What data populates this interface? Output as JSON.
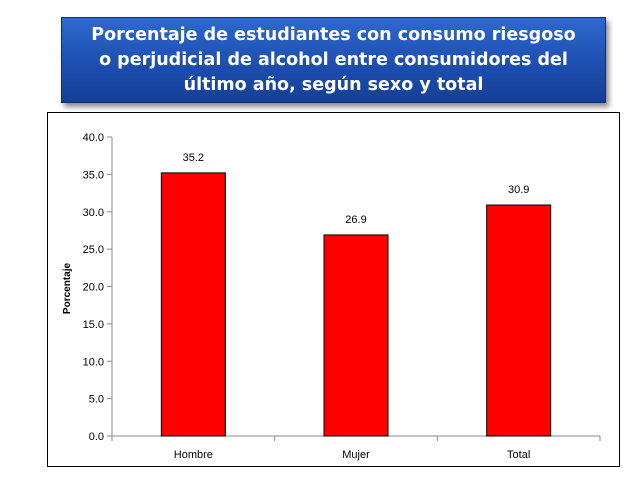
{
  "title_lines": [
    "Porcentaje de estudiantes con consumo riesgoso",
    "o perjudicial de alcohol entre consumidores del",
    "último año, según sexo y total"
  ],
  "chart_data": {
    "type": "bar",
    "title": "Porcentaje de estudiantes con consumo riesgoso o perjudicial de alcohol entre consumidores del último año, según sexo y total",
    "categories": [
      "Hombre",
      "Mujer",
      "Total"
    ],
    "values": [
      35.2,
      26.9,
      30.9
    ],
    "value_labels": [
      "35.2",
      "26.9",
      "30.9"
    ],
    "xlabel": "",
    "ylabel": "Porcentaje",
    "ylim": [
      0,
      40
    ],
    "yticks": [
      "0.0",
      "5.0",
      "10.0",
      "15.0",
      "20.0",
      "25.0",
      "30.0",
      "35.0",
      "40.0"
    ],
    "grid": false,
    "legend": "none",
    "bar_color": "#ff0000",
    "bar_edge_color": "#000000"
  }
}
